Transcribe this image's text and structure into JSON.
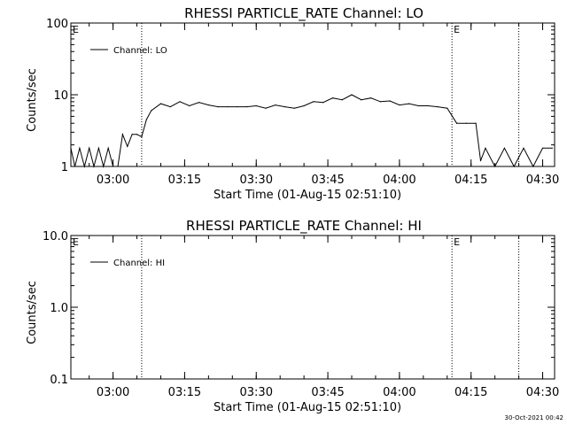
{
  "footer": {
    "timestamp": "30-Oct-2021 00:42"
  },
  "chart_data": [
    {
      "type": "line",
      "title": "RHESSI PARTICLE_RATE Channel: LO",
      "xlabel": "Start Time (01-Aug-15 02:51:10)",
      "ylabel": "Counts/sec",
      "yscale": "log",
      "ylim": [
        1,
        100
      ],
      "xlim": [
        "02:51:10",
        "04:32:30"
      ],
      "x_ticks": [
        "03:00",
        "03:15",
        "03:30",
        "03:45",
        "04:00",
        "04:15",
        "04:30"
      ],
      "y_ticks": [
        "1",
        "10",
        "100"
      ],
      "legend": "top-left",
      "series": [
        {
          "name": "Channel: LO",
          "x": [
            "02:51:10",
            "02:52:00",
            "02:53:00",
            "02:54:00",
            "02:55:00",
            "02:56:00",
            "02:57:00",
            "02:58:00",
            "02:59:00",
            "03:00:00",
            "03:01:00",
            "03:02:00",
            "03:03:00",
            "03:04:00",
            "03:05:00",
            "03:06:00",
            "03:07:00",
            "03:08:00",
            "03:10:00",
            "03:12:00",
            "03:14:00",
            "03:16:00",
            "03:18:00",
            "03:20:00",
            "03:22:00",
            "03:24:00",
            "03:26:00",
            "03:28:00",
            "03:30:00",
            "03:32:00",
            "03:34:00",
            "03:36:00",
            "03:38:00",
            "03:40:00",
            "03:42:00",
            "03:44:00",
            "03:46:00",
            "03:48:00",
            "03:50:00",
            "03:52:00",
            "03:54:00",
            "03:56:00",
            "03:58:00",
            "04:00:00",
            "04:02:00",
            "04:04:00",
            "04:06:00",
            "04:08:00",
            "04:10:00",
            "04:12:00",
            "04:14:00",
            "04:16:00",
            "04:17:00",
            "04:18:00",
            "04:20:00",
            "04:22:00",
            "04:24:00",
            "04:26:00",
            "04:28:00",
            "04:30:00",
            "04:32:00"
          ],
          "values": [
            1.8,
            1,
            1.8,
            1,
            1.8,
            1,
            1.8,
            1,
            1.8,
            1,
            1,
            2.8,
            1.9,
            2.8,
            2.8,
            2.6,
            4.5,
            6.0,
            7.5,
            6.8,
            8.0,
            7.0,
            7.8,
            7.2,
            6.8,
            6.8,
            6.8,
            6.8,
            7.0,
            6.5,
            7.2,
            6.8,
            6.5,
            7.0,
            8.0,
            7.8,
            9.0,
            8.5,
            10.0,
            8.5,
            9.0,
            8.0,
            8.2,
            7.2,
            7.5,
            7.0,
            7.0,
            6.8,
            6.5,
            4.0,
            4.0,
            4.0,
            1.2,
            1.8,
            1,
            1.8,
            1,
            1.8,
            1,
            1.8,
            1.8
          ]
        }
      ],
      "vlines": [
        {
          "x": "03:06:00",
          "label": ""
        },
        {
          "x": "04:11:00",
          "label": "E"
        },
        {
          "x": "04:25:00",
          "label": ""
        }
      ],
      "annotations": [
        "E"
      ]
    },
    {
      "type": "line",
      "title": "RHESSI PARTICLE_RATE Channel: HI",
      "xlabel": "Start Time (01-Aug-15 02:51:10)",
      "ylabel": "Counts/sec",
      "yscale": "log",
      "ylim": [
        0.1,
        10
      ],
      "xlim": [
        "02:51:10",
        "04:32:30"
      ],
      "x_ticks": [
        "03:00",
        "03:15",
        "03:30",
        "03:45",
        "04:00",
        "04:15",
        "04:30"
      ],
      "y_ticks": [
        "0.1",
        "1.0",
        "10.0"
      ],
      "legend": "top-left",
      "series": [
        {
          "name": "Channel: HI",
          "x": [],
          "values": []
        }
      ],
      "vlines": [
        {
          "x": "03:06:00",
          "label": ""
        },
        {
          "x": "04:11:00",
          "label": "E"
        },
        {
          "x": "04:25:00",
          "label": ""
        }
      ],
      "annotations": [
        "E"
      ]
    }
  ]
}
